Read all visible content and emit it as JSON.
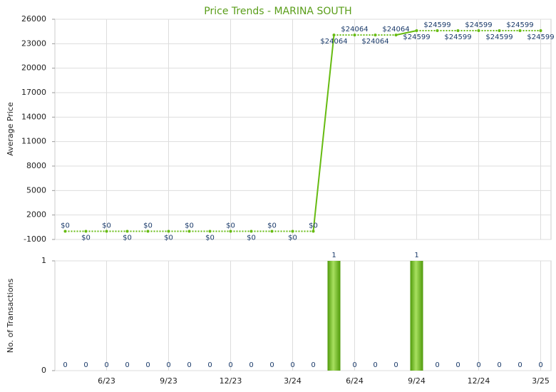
{
  "chart_data": [
    {
      "type": "line",
      "title": "Price Trends - MARINA SOUTH",
      "y_label": "Average Price",
      "color": "#66bb11",
      "values": [
        0,
        0,
        0,
        0,
        0,
        0,
        0,
        0,
        0,
        0,
        0,
        0,
        0,
        24064,
        24064,
        24064,
        24064,
        24599,
        24599,
        24599,
        24599,
        24599,
        24599,
        24599
      ],
      "value_labels": [
        "$0",
        "$0",
        "$0",
        "$0",
        "$0",
        "$0",
        "$0",
        "$0",
        "$0",
        "$0",
        "$0",
        "$0",
        "$0",
        "$24064",
        "$24064",
        "$24064",
        "$24064",
        "$24599",
        "$24599",
        "$24599",
        "$24599",
        "$24599",
        "$24599",
        "$24599"
      ],
      "ylim": [
        -1000,
        26000
      ],
      "yticks": [
        -1000,
        2000,
        5000,
        8000,
        11000,
        14000,
        17000,
        20000,
        23000,
        26000
      ],
      "grid": true
    },
    {
      "type": "bar",
      "y_label": "No. of Transactions",
      "color": "#66bb11",
      "categories": [
        null,
        null,
        "6/23",
        null,
        null,
        "9/23",
        null,
        null,
        "12/23",
        null,
        null,
        "3/24",
        null,
        null,
        "6/24",
        null,
        null,
        "9/24",
        null,
        null,
        "12/24",
        null,
        null,
        "3/25"
      ],
      "values": [
        0,
        0,
        0,
        0,
        0,
        0,
        0,
        0,
        0,
        0,
        0,
        0,
        0,
        1,
        0,
        0,
        0,
        1,
        0,
        0,
        0,
        0,
        0,
        0
      ],
      "ylim": [
        0,
        1
      ],
      "yticks": [
        0,
        1
      ],
      "grid": true
    }
  ]
}
